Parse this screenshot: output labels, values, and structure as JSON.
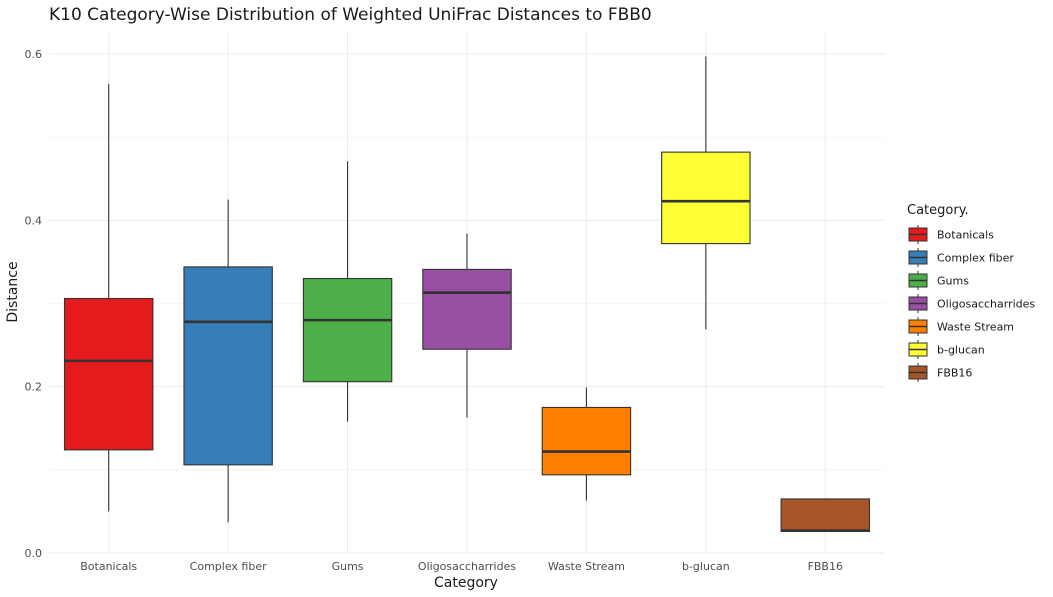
{
  "chart_data": {
    "type": "boxplot",
    "title": "K10 Category-Wise Distribution of Weighted UniFrac Distances to FBB0",
    "xlabel": "Category",
    "ylabel": "Distance",
    "ylim": [
      0,
      0.625
    ],
    "yticks": [
      0.0,
      0.2,
      0.4,
      0.6
    ],
    "ytick_labels": [
      "0.0",
      "0.2",
      "0.4",
      "0.6"
    ],
    "grid": true,
    "legend": {
      "title": "Category.",
      "position": "right"
    },
    "categories": [
      "Botanicals",
      "Complex fiber",
      "Gums",
      "Oligosaccharrides",
      "Waste Stream",
      "b-glucan",
      "FBB16"
    ],
    "boxes": [
      {
        "category": "Botanicals",
        "min": 0.05,
        "q1": 0.124,
        "median": 0.231,
        "q3": 0.306,
        "max": 0.564,
        "color": "#E41A1C"
      },
      {
        "category": "Complex fiber",
        "min": 0.037,
        "q1": 0.106,
        "median": 0.278,
        "q3": 0.344,
        "max": 0.425,
        "color": "#377EB8"
      },
      {
        "category": "Gums",
        "min": 0.158,
        "q1": 0.206,
        "median": 0.28,
        "q3": 0.33,
        "max": 0.471,
        "color": "#4DAF4A"
      },
      {
        "category": "Oligosaccharrides",
        "min": 0.163,
        "q1": 0.245,
        "median": 0.313,
        "q3": 0.341,
        "max": 0.384,
        "color": "#984EA3"
      },
      {
        "category": "Waste Stream",
        "min": 0.063,
        "q1": 0.094,
        "median": 0.122,
        "q3": 0.175,
        "max": 0.199,
        "color": "#FF7F00"
      },
      {
        "category": "b-glucan",
        "min": 0.269,
        "q1": 0.372,
        "median": 0.423,
        "q3": 0.482,
        "max": 0.597,
        "color": "#FFFF33"
      },
      {
        "category": "FBB16",
        "min": 0.026,
        "q1": 0.026,
        "median": 0.027,
        "q3": 0.065,
        "max": 0.065,
        "color": "#A65628"
      }
    ]
  }
}
